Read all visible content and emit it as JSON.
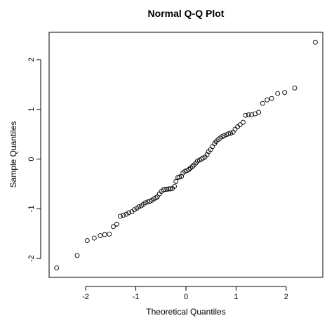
{
  "chart_data": {
    "type": "scatter",
    "title": "Normal Q-Q Plot",
    "xlabel": "Theoretical Quantiles",
    "ylabel": "Sample Quantiles",
    "xlim": [
      -2.73,
      2.73
    ],
    "ylim": [
      -2.38,
      2.55
    ],
    "x_ticks": [
      -2,
      -1,
      0,
      1,
      2
    ],
    "y_ticks": [
      -2,
      -1,
      0,
      1,
      2
    ],
    "x_tick_labels": [
      "-2",
      "-1",
      "0",
      "1",
      "2"
    ],
    "y_tick_labels": [
      "-2",
      "-1",
      "0",
      "1",
      "2"
    ],
    "grid": false,
    "marker": "open-circle",
    "points": [
      [
        -2.58,
        -2.19
      ],
      [
        -2.17,
        -1.94
      ],
      [
        -1.97,
        -1.64
      ],
      [
        -1.83,
        -1.59
      ],
      [
        -1.71,
        -1.54
      ],
      [
        -1.62,
        -1.52
      ],
      [
        -1.53,
        -1.51
      ],
      [
        -1.45,
        -1.36
      ],
      [
        -1.38,
        -1.31
      ],
      [
        -1.31,
        -1.15
      ],
      [
        -1.25,
        -1.13
      ],
      [
        -1.19,
        -1.11
      ],
      [
        -1.14,
        -1.08
      ],
      [
        -1.08,
        -1.06
      ],
      [
        -1.03,
        -1.02
      ],
      [
        -0.98,
        -0.99
      ],
      [
        -0.94,
        -0.96
      ],
      [
        -0.89,
        -0.94
      ],
      [
        -0.85,
        -0.91
      ],
      [
        -0.81,
        -0.88
      ],
      [
        -0.76,
        -0.86
      ],
      [
        -0.72,
        -0.85
      ],
      [
        -0.68,
        -0.83
      ],
      [
        -0.64,
        -0.8
      ],
      [
        -0.6,
        -0.78
      ],
      [
        -0.57,
        -0.76
      ],
      [
        -0.53,
        -0.7
      ],
      [
        -0.49,
        -0.65
      ],
      [
        -0.45,
        -0.62
      ],
      [
        -0.42,
        -0.61
      ],
      [
        -0.38,
        -0.61
      ],
      [
        -0.34,
        -0.6
      ],
      [
        -0.31,
        -0.6
      ],
      [
        -0.27,
        -0.59
      ],
      [
        -0.23,
        -0.55
      ],
      [
        -0.2,
        -0.45
      ],
      [
        -0.16,
        -0.37
      ],
      [
        -0.13,
        -0.36
      ],
      [
        -0.09,
        -0.35
      ],
      [
        -0.06,
        -0.28
      ],
      [
        -0.02,
        -0.25
      ],
      [
        0.02,
        -0.23
      ],
      [
        0.06,
        -0.21
      ],
      [
        0.09,
        -0.18
      ],
      [
        0.13,
        -0.15
      ],
      [
        0.16,
        -0.12
      ],
      [
        0.2,
        -0.08
      ],
      [
        0.23,
        -0.04
      ],
      [
        0.27,
        -0.02
      ],
      [
        0.31,
        0.0
      ],
      [
        0.34,
        0.02
      ],
      [
        0.38,
        0.04
      ],
      [
        0.42,
        0.09
      ],
      [
        0.45,
        0.15
      ],
      [
        0.49,
        0.19
      ],
      [
        0.53,
        0.25
      ],
      [
        0.57,
        0.31
      ],
      [
        0.6,
        0.35
      ],
      [
        0.64,
        0.39
      ],
      [
        0.68,
        0.42
      ],
      [
        0.72,
        0.45
      ],
      [
        0.76,
        0.47
      ],
      [
        0.81,
        0.49
      ],
      [
        0.85,
        0.51
      ],
      [
        0.89,
        0.52
      ],
      [
        0.94,
        0.54
      ],
      [
        0.98,
        0.6
      ],
      [
        1.03,
        0.65
      ],
      [
        1.08,
        0.69
      ],
      [
        1.14,
        0.74
      ],
      [
        1.19,
        0.88
      ],
      [
        1.25,
        0.89
      ],
      [
        1.31,
        0.89
      ],
      [
        1.38,
        0.91
      ],
      [
        1.45,
        0.94
      ],
      [
        1.53,
        1.12
      ],
      [
        1.62,
        1.19
      ],
      [
        1.71,
        1.22
      ],
      [
        1.83,
        1.32
      ],
      [
        1.97,
        1.34
      ],
      [
        2.17,
        1.43
      ],
      [
        2.58,
        2.35
      ]
    ]
  }
}
